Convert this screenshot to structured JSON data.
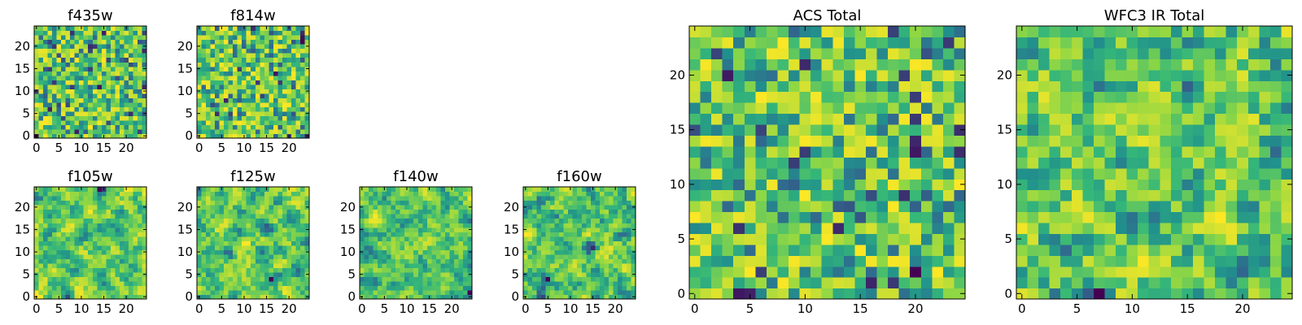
{
  "figure": {
    "colormap": [
      "#440154",
      "#31688e",
      "#21918c",
      "#35b779",
      "#8fd744",
      "#fde725"
    ],
    "note": ""
  },
  "chart_data": [
    {
      "type": "heatmap",
      "title": "f435w",
      "xlabel": "",
      "ylabel": "",
      "xlim": [
        0,
        25
      ],
      "ylim": [
        0,
        25
      ],
      "xticks": [
        0,
        5,
        10,
        15,
        20
      ],
      "yticks": [
        0,
        5,
        10,
        15,
        20
      ],
      "grid_size": 25,
      "colormap": "viridis",
      "value_range": [
        0,
        1
      ],
      "seed": 11,
      "smooth": 0.08,
      "grid": false
    },
    {
      "type": "heatmap",
      "title": "f814w",
      "xlabel": "",
      "ylabel": "",
      "xlim": [
        0,
        25
      ],
      "ylim": [
        0,
        25
      ],
      "xticks": [
        0,
        5,
        10,
        15,
        20
      ],
      "yticks": [
        0,
        5,
        10,
        15,
        20
      ],
      "grid_size": 25,
      "colormap": "viridis",
      "value_range": [
        0,
        1
      ],
      "seed": 23,
      "smooth": 0.08,
      "grid": false
    },
    {
      "type": "heatmap",
      "title": "f105w",
      "xlabel": "",
      "ylabel": "",
      "xlim": [
        0,
        25
      ],
      "ylim": [
        0,
        25
      ],
      "xticks": [
        0,
        5,
        10,
        15,
        20
      ],
      "yticks": [
        0,
        5,
        10,
        15,
        20
      ],
      "grid_size": 25,
      "colormap": "viridis",
      "value_range": [
        0,
        1
      ],
      "seed": 37,
      "smooth": 0.55,
      "grid": false
    },
    {
      "type": "heatmap",
      "title": "f125w",
      "xlabel": "",
      "ylabel": "",
      "xlim": [
        0,
        25
      ],
      "ylim": [
        0,
        25
      ],
      "xticks": [
        0,
        5,
        10,
        15,
        20
      ],
      "yticks": [
        0,
        5,
        10,
        15,
        20
      ],
      "grid_size": 25,
      "colormap": "viridis",
      "value_range": [
        0,
        1
      ],
      "seed": 41,
      "smooth": 0.55,
      "grid": false
    },
    {
      "type": "heatmap",
      "title": "f140w",
      "xlabel": "",
      "ylabel": "",
      "xlim": [
        0,
        25
      ],
      "ylim": [
        0,
        25
      ],
      "xticks": [
        0,
        5,
        10,
        15,
        20
      ],
      "yticks": [
        0,
        5,
        10,
        15,
        20
      ],
      "grid_size": 25,
      "colormap": "viridis",
      "value_range": [
        0,
        1
      ],
      "seed": 53,
      "smooth": 0.55,
      "grid": false
    },
    {
      "type": "heatmap",
      "title": "f160w",
      "xlabel": "",
      "ylabel": "",
      "xlim": [
        0,
        25
      ],
      "ylim": [
        0,
        25
      ],
      "xticks": [
        0,
        5,
        10,
        15,
        20
      ],
      "yticks": [
        0,
        5,
        10,
        15,
        20
      ],
      "grid_size": 25,
      "colormap": "viridis",
      "value_range": [
        0,
        1
      ],
      "seed": 67,
      "smooth": 0.55,
      "grid": false
    },
    {
      "type": "heatmap",
      "title": "ACS Total",
      "xlabel": "",
      "ylabel": "",
      "xlim": [
        0,
        25
      ],
      "ylim": [
        0,
        25
      ],
      "xticks": [
        0,
        5,
        10,
        15,
        20
      ],
      "yticks": [
        0,
        5,
        10,
        15,
        20
      ],
      "grid_size": 25,
      "colormap": "viridis",
      "value_range": [
        0,
        1
      ],
      "seed": 79,
      "smooth": 0.0,
      "grid": false
    },
    {
      "type": "heatmap",
      "title": "WFC3 IR Total",
      "xlabel": "",
      "ylabel": "",
      "xlim": [
        0,
        25
      ],
      "ylim": [
        0,
        25
      ],
      "xticks": [
        0,
        5,
        10,
        15,
        20
      ],
      "yticks": [
        0,
        5,
        10,
        15,
        20
      ],
      "grid_size": 25,
      "colormap": "viridis",
      "value_range": [
        0,
        1
      ],
      "seed": 97,
      "smooth": 0.25,
      "grid": false
    }
  ]
}
